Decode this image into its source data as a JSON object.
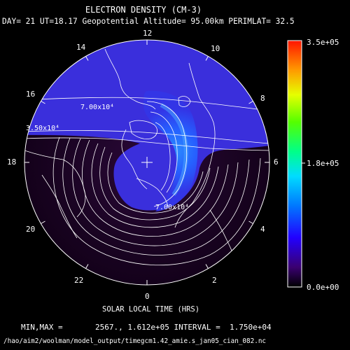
{
  "title": "ELECTRON DENSITY (CM-3)",
  "subtitle": "DAY= 21 UT=18.17 Geopotential Altitude= 95.00km PERIMLAT= 32.5",
  "hour_labels": [
    "12",
    "14",
    "16",
    "18",
    "20",
    "22",
    "0",
    "2",
    "4",
    "6",
    "8",
    "10"
  ],
  "xlabel": "SOLAR LOCAL TIME (HRS)",
  "stats": "MIN,MAX =       2567., 1.612e+05 INTERVAL =  1.750e+04",
  "file_path": "/hao/aim2/woolman/model_output/timegcm1.42_amie.s_jan05_cian_082.nc",
  "colorbar": {
    "max_label": "3.5e+05",
    "mid_label": "1.8e+05",
    "min_label": "0.0e+00"
  },
  "contour_labels": [
    "7.00x10⁴",
    "3.50x10⁴",
    "7.00x10⁴"
  ],
  "colors": {
    "background": "#000000",
    "night_low": "#150019",
    "day_high": "#3b2fe0",
    "peak": "#1f62ff",
    "contour": "#ffffff"
  }
}
